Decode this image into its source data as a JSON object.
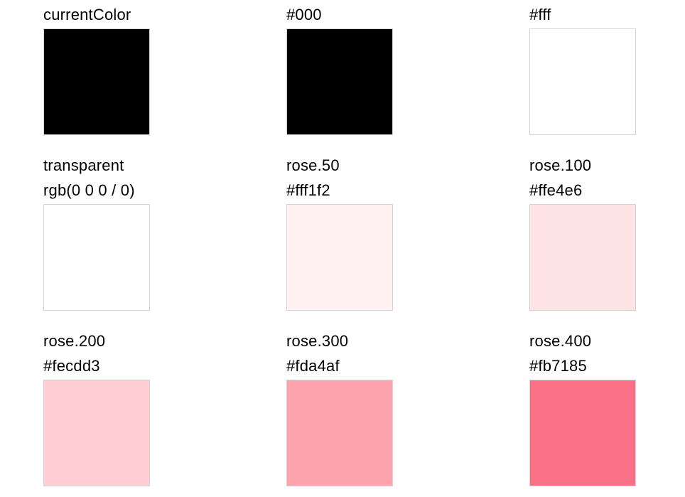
{
  "page": {
    "background": "#ffffff",
    "swatch_border": "#d4d4d4",
    "text_color": "#000000"
  },
  "swatches": [
    {
      "label": "currentColor",
      "color": "#000000"
    },
    {
      "label": "#000",
      "color": "#000000"
    },
    {
      "label": "#fff",
      "color": "#ffffff"
    },
    {
      "label": "transparent",
      "value": "rgb(0 0 0 / 0)",
      "color": "transparent"
    },
    {
      "label": "rose.50",
      "value": "#fff1f2",
      "color": "#fff1f2"
    },
    {
      "label": "rose.100",
      "value": "#ffe4e6",
      "color": "#ffe4e6"
    },
    {
      "label": "rose.200",
      "value": "#fecdd3",
      "color": "#fecdd3"
    },
    {
      "label": "rose.300",
      "value": "#fda4af",
      "color": "#fda4af"
    },
    {
      "label": "rose.400",
      "value": "#fb7185",
      "color": "#fb7185"
    }
  ]
}
